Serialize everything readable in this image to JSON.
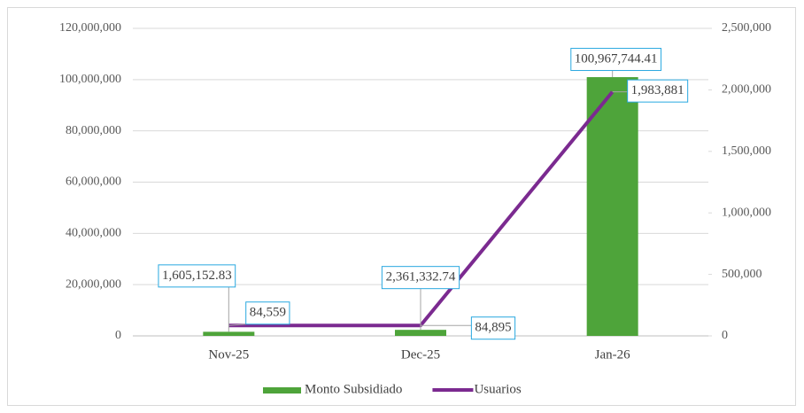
{
  "chart_data": {
    "type": "bar",
    "categories": [
      "Nov-25",
      "Dec-25",
      "Jan-26"
    ],
    "series": [
      {
        "name": "Monto Subsidiado",
        "type": "bar",
        "color": "#4ea43a",
        "values": [
          1605152.83,
          2361332.74,
          100967744.41
        ],
        "value_labels": [
          "1,605,152.83",
          "2,361,332.74",
          "100,967,744.41"
        ]
      },
      {
        "name": "Usuarios",
        "type": "line",
        "axis": "y2",
        "color": "#7b2a90",
        "values": [
          84559,
          84895,
          1983881
        ],
        "value_labels": [
          "84,559",
          "84,895",
          "1,983,881"
        ]
      }
    ],
    "ylim": [
      0,
      120000000
    ],
    "yticks": [
      0,
      {
        "value": 20000000,
        "label": "20,000,000"
      },
      {
        "value": 40000000,
        "label": "40,000,000"
      },
      {
        "value": 60000000,
        "label": "60,000,000"
      },
      {
        "value": 80000000,
        "label": "80,000,000"
      },
      {
        "value": 100000000,
        "label": "100,000,000"
      },
      {
        "value": 120000000,
        "label": "120,000,000"
      }
    ],
    "y2lim": [
      0,
      2500000
    ],
    "y2ticks": [
      0,
      {
        "value": 500000,
        "label": "500,000"
      },
      {
        "value": 1000000,
        "label": "1,000,000"
      },
      {
        "value": 1500000,
        "label": "1,500,000"
      },
      {
        "value": 2000000,
        "label": "2,000,000"
      },
      {
        "value": 2500000,
        "label": "2,500,000"
      }
    ],
    "grid": true,
    "legend": "bottom"
  }
}
